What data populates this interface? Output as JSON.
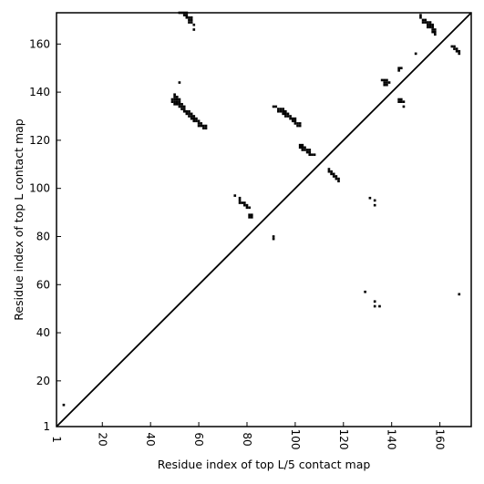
{
  "chart_data": {
    "type": "heatmap",
    "title": "",
    "xlabel": "Residue index of top L/5 contact map",
    "ylabel": "Residue index of top L contact map",
    "xlim": [
      1,
      173
    ],
    "ylim": [
      1,
      173
    ],
    "xticks": [
      1,
      20,
      40,
      60,
      80,
      100,
      120,
      140,
      160
    ],
    "yticks": [
      1,
      20,
      40,
      60,
      80,
      100,
      120,
      140,
      160
    ],
    "grid": false,
    "diagonal_line": true,
    "cell_color": "#000000",
    "points": [
      [
        4,
        10
      ],
      [
        52,
        173
      ],
      [
        53,
        173
      ],
      [
        54,
        173
      ],
      [
        55,
        173
      ],
      [
        54,
        172
      ],
      [
        55,
        172
      ],
      [
        55,
        171
      ],
      [
        56,
        171
      ],
      [
        57,
        171
      ],
      [
        56,
        170
      ],
      [
        57,
        170
      ],
      [
        56,
        169
      ],
      [
        57,
        169
      ],
      [
        58,
        168
      ],
      [
        58,
        166
      ],
      [
        52,
        144
      ],
      [
        50,
        139
      ],
      [
        50,
        138
      ],
      [
        51,
        138
      ],
      [
        49,
        137
      ],
      [
        50,
        137
      ],
      [
        51,
        137
      ],
      [
        52,
        137
      ],
      [
        49,
        136
      ],
      [
        50,
        136
      ],
      [
        51,
        136
      ],
      [
        52,
        136
      ],
      [
        50,
        135
      ],
      [
        51,
        135
      ],
      [
        52,
        135
      ],
      [
        53,
        135
      ],
      [
        52,
        134
      ],
      [
        53,
        134
      ],
      [
        54,
        134
      ],
      [
        53,
        133
      ],
      [
        54,
        133
      ],
      [
        54,
        132
      ],
      [
        55,
        132
      ],
      [
        56,
        132
      ],
      [
        55,
        131
      ],
      [
        56,
        131
      ],
      [
        57,
        131
      ],
      [
        56,
        130
      ],
      [
        57,
        130
      ],
      [
        58,
        130
      ],
      [
        57,
        129
      ],
      [
        58,
        129
      ],
      [
        59,
        129
      ],
      [
        58,
        128
      ],
      [
        59,
        128
      ],
      [
        60,
        128
      ],
      [
        60,
        127
      ],
      [
        61,
        127
      ],
      [
        60,
        126
      ],
      [
        61,
        126
      ],
      [
        62,
        126
      ],
      [
        62,
        125
      ],
      [
        63,
        125
      ],
      [
        63,
        126
      ],
      [
        91,
        134
      ],
      [
        92,
        134
      ],
      [
        93,
        133
      ],
      [
        94,
        133
      ],
      [
        95,
        133
      ],
      [
        93,
        132
      ],
      [
        94,
        132
      ],
      [
        95,
        132
      ],
      [
        96,
        132
      ],
      [
        95,
        131
      ],
      [
        96,
        131
      ],
      [
        97,
        131
      ],
      [
        96,
        130
      ],
      [
        97,
        130
      ],
      [
        98,
        130
      ],
      [
        98,
        129
      ],
      [
        99,
        129
      ],
      [
        100,
        129
      ],
      [
        99,
        128
      ],
      [
        100,
        128
      ],
      [
        100,
        127
      ],
      [
        101,
        127
      ],
      [
        101,
        126
      ],
      [
        102,
        126
      ],
      [
        102,
        127
      ],
      [
        102,
        118
      ],
      [
        103,
        118
      ],
      [
        102,
        117
      ],
      [
        103,
        117
      ],
      [
        104,
        117
      ],
      [
        103,
        116
      ],
      [
        104,
        116
      ],
      [
        105,
        116
      ],
      [
        106,
        116
      ],
      [
        105,
        115
      ],
      [
        106,
        115
      ],
      [
        106,
        114
      ],
      [
        107,
        114
      ],
      [
        108,
        114
      ],
      [
        75,
        97
      ],
      [
        77,
        96
      ],
      [
        77,
        95
      ],
      [
        77,
        94
      ],
      [
        78,
        94
      ],
      [
        79,
        94
      ],
      [
        79,
        93
      ],
      [
        80,
        93
      ],
      [
        80,
        92
      ],
      [
        81,
        92
      ],
      [
        81,
        89
      ],
      [
        82,
        89
      ],
      [
        81,
        88
      ],
      [
        82,
        88
      ],
      [
        91,
        80
      ],
      [
        91,
        79
      ],
      [
        114,
        108
      ],
      [
        114,
        107
      ],
      [
        115,
        107
      ],
      [
        115,
        106
      ],
      [
        116,
        106
      ],
      [
        116,
        105
      ],
      [
        117,
        105
      ],
      [
        117,
        104
      ],
      [
        118,
        104
      ],
      [
        118,
        103
      ],
      [
        131,
        96
      ],
      [
        133,
        95
      ],
      [
        133,
        93
      ],
      [
        129,
        57
      ],
      [
        133,
        53
      ],
      [
        133,
        51
      ],
      [
        135,
        51
      ],
      [
        136,
        145
      ],
      [
        137,
        145
      ],
      [
        138,
        145
      ],
      [
        137,
        144
      ],
      [
        138,
        144
      ],
      [
        139,
        144
      ],
      [
        137,
        143
      ],
      [
        138,
        143
      ],
      [
        143,
        150
      ],
      [
        144,
        150
      ],
      [
        143,
        149
      ],
      [
        143,
        137
      ],
      [
        144,
        137
      ],
      [
        143,
        136
      ],
      [
        144,
        136
      ],
      [
        145,
        136
      ],
      [
        145,
        134
      ],
      [
        150,
        156
      ],
      [
        152,
        172
      ],
      [
        152,
        171
      ],
      [
        153,
        170
      ],
      [
        154,
        170
      ],
      [
        153,
        169
      ],
      [
        154,
        169
      ],
      [
        155,
        169
      ],
      [
        156,
        169
      ],
      [
        155,
        168
      ],
      [
        156,
        168
      ],
      [
        157,
        168
      ],
      [
        155,
        167
      ],
      [
        156,
        167
      ],
      [
        157,
        167
      ],
      [
        157,
        166
      ],
      [
        158,
        166
      ],
      [
        157,
        165
      ],
      [
        158,
        165
      ],
      [
        158,
        164
      ],
      [
        165,
        159
      ],
      [
        166,
        159
      ],
      [
        166,
        158
      ],
      [
        167,
        158
      ],
      [
        167,
        157
      ],
      [
        168,
        157
      ],
      [
        168,
        156
      ],
      [
        168,
        56
      ]
    ]
  }
}
